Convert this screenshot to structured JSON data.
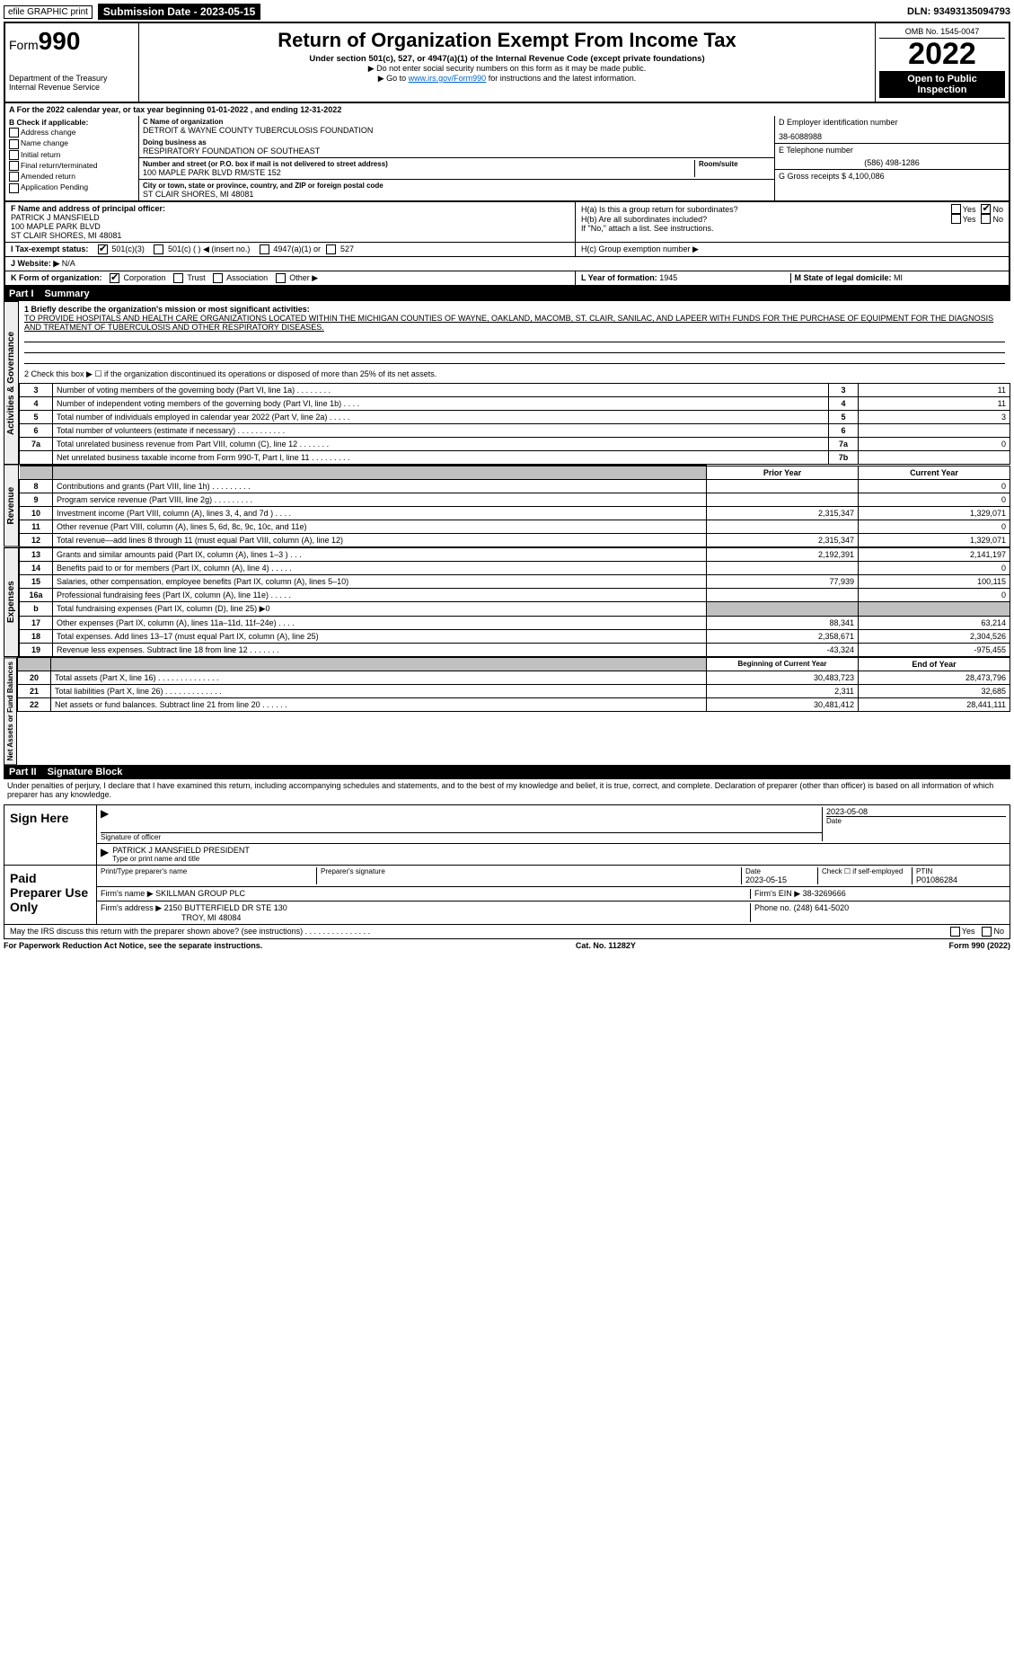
{
  "topbar": {
    "efile_label": "efile GRAPHIC print",
    "submission_label": "Submission Date - 2023-05-15",
    "dln": "DLN: 93493135094793"
  },
  "header": {
    "form_word": "Form",
    "form_num": "990",
    "dept": "Department of the Treasury",
    "irs": "Internal Revenue Service",
    "title": "Return of Organization Exempt From Income Tax",
    "subtitle": "Under section 501(c), 527, or 4947(a)(1) of the Internal Revenue Code (except private foundations)",
    "note1": "▶ Do not enter social security numbers on this form as it may be made public.",
    "note2_pre": "▶ Go to ",
    "note2_link": "www.irs.gov/Form990",
    "note2_post": " for instructions and the latest information.",
    "omb": "OMB No. 1545-0047",
    "year": "2022",
    "open_pub": "Open to Public Inspection"
  },
  "line_a": "A For the 2022 calendar year, or tax year beginning 01-01-2022    , and ending 12-31-2022",
  "col_b": {
    "hdr": "B Check if applicable:",
    "addr": "Address change",
    "name": "Name change",
    "init": "Initial return",
    "final": "Final return/terminated",
    "amend": "Amended return",
    "app": "Application Pending"
  },
  "col_c": {
    "name_lab": "C Name of organization",
    "name": "DETROIT & WAYNE COUNTY TUBERCULOSIS FOUNDATION",
    "dba_lab": "Doing business as",
    "dba": "RESPIRATORY FOUNDATION OF SOUTHEAST",
    "addr_lab": "Number and street (or P.O. box if mail is not delivered to street address)",
    "room_lab": "Room/suite",
    "addr": "100 MAPLE PARK BLVD RM/STE 152",
    "city_lab": "City or town, state or province, country, and ZIP or foreign postal code",
    "city": "ST CLAIR SHORES, MI  48081"
  },
  "col_de": {
    "d_lab": "D Employer identification number",
    "d_val": "38-6088988",
    "e_lab": "E Telephone number",
    "e_val": "(586) 498-1286",
    "g_lab": "G Gross receipts $",
    "g_val": "4,100,086"
  },
  "f": {
    "lab": "F Name and address of principal officer:",
    "name": "PATRICK J MANSFIELD",
    "addr1": "100 MAPLE PARK BLVD",
    "addr2": "ST CLAIR SHORES, MI  48081"
  },
  "h": {
    "a": "H(a)  Is this a group return for subordinates?",
    "b": "H(b)  Are all subordinates included?",
    "b_note": "If \"No,\" attach a list. See instructions.",
    "c": "H(c)  Group exemption number ▶",
    "yes": "Yes",
    "no": "No"
  },
  "i": {
    "lab": "I Tax-exempt status:",
    "o1": "501(c)(3)",
    "o2": "501(c) (   ) ◀ (insert no.)",
    "o3": "4947(a)(1) or",
    "o4": "527"
  },
  "j": {
    "lab": "J Website: ▶",
    "val": "N/A"
  },
  "k": {
    "lab": "K Form of organization:",
    "corp": "Corporation",
    "trust": "Trust",
    "assoc": "Association",
    "other": "Other ▶"
  },
  "l": {
    "lab": "L Year of formation:",
    "val": "1945"
  },
  "m": {
    "lab": "M State of legal domicile:",
    "val": "MI"
  },
  "parts": {
    "p1": "Part I",
    "p1t": "Summary",
    "p2": "Part II",
    "p2t": "Signature Block"
  },
  "vtabs": {
    "ag": "Activities & Governance",
    "rev": "Revenue",
    "exp": "Expenses",
    "nab": "Net Assets or Fund Balances"
  },
  "p1": {
    "l1": "1 Briefly describe the organization's mission or most significant activities:",
    "l1_text": "TO PROVIDE HOSPITALS AND HEALTH CARE ORGANIZATIONS LOCATED WITHIN THE MICHIGAN COUNTIES OF WAYNE, OAKLAND, MACOMB, ST. CLAIR, SANILAC, AND LAPEER WITH FUNDS FOR THE PURCHASE OF EQUIPMENT FOR THE DIAGNOSIS AND TREATMENT OF TUBERCULOSIS AND OTHER RESPIRATORY DISEASES.",
    "l2": "2 Check this box ▶ ☐ if the organization discontinued its operations or disposed of more than 25% of its net assets.",
    "rows": [
      {
        "n": "3",
        "t": "Number of voting members of the governing body (Part VI, line 1a)  .    .    .    .    .    .    .    .",
        "b": "3",
        "v": "11"
      },
      {
        "n": "4",
        "t": "Number of independent voting members of the governing body (Part VI, line 1b)   .    .    .    .",
        "b": "4",
        "v": "11"
      },
      {
        "n": "5",
        "t": "Total number of individuals employed in calendar year 2022 (Part V, line 2a)   .    .    .    .    .",
        "b": "5",
        "v": "3"
      },
      {
        "n": "6",
        "t": "Total number of volunteers (estimate if necessary)    .    .    .    .    .    .    .    .    .    .    .",
        "b": "6",
        "v": ""
      },
      {
        "n": "7a",
        "t": "Total unrelated business revenue from Part VIII, column (C), line 12   .    .    .    .    .    .    .",
        "b": "7a",
        "v": "0"
      },
      {
        "n": "",
        "t": "Net unrelated business taxable income from Form 990-T, Part I, line 11   .    .    .    .    .    .    .    .    .",
        "b": "7b",
        "v": ""
      }
    ],
    "hdr_prior": "Prior Year",
    "hdr_curr": "Current Year",
    "rev_rows": [
      {
        "n": "8",
        "t": "Contributions and grants (Part VIII, line 1h)   .    .    .    .    .    .    .    .    .",
        "p": "",
        "c": "0"
      },
      {
        "n": "9",
        "t": "Program service revenue (Part VIII, line 2g)   .    .    .    .    .    .    .    .    .",
        "p": "",
        "c": "0"
      },
      {
        "n": "10",
        "t": "Investment income (Part VIII, column (A), lines 3, 4, and 7d )   .    .    .    .",
        "p": "2,315,347",
        "c": "1,329,071"
      },
      {
        "n": "11",
        "t": "Other revenue (Part VIII, column (A), lines 5, 6d, 8c, 9c, 10c, and 11e)",
        "p": "",
        "c": "0"
      },
      {
        "n": "12",
        "t": "Total revenue—add lines 8 through 11 (must equal Part VIII, column (A), line 12)",
        "p": "2,315,347",
        "c": "1,329,071"
      }
    ],
    "exp_rows": [
      {
        "n": "13",
        "t": "Grants and similar amounts paid (Part IX, column (A), lines 1–3 )   .    .    .",
        "p": "2,192,391",
        "c": "2,141,197"
      },
      {
        "n": "14",
        "t": "Benefits paid to or for members (Part IX, column (A), line 4)   .    .    .    .    .",
        "p": "",
        "c": "0"
      },
      {
        "n": "15",
        "t": "Salaries, other compensation, employee benefits (Part IX, column (A), lines 5–10)",
        "p": "77,939",
        "c": "100,115"
      },
      {
        "n": "16a",
        "t": "Professional fundraising fees (Part IX, column (A), line 11e)   .    .    .    .    .",
        "p": "",
        "c": "0"
      },
      {
        "n": "b",
        "t": "Total fundraising expenses (Part IX, column (D), line 25) ▶0",
        "p": "__grey__",
        "c": "__grey__"
      },
      {
        "n": "17",
        "t": "Other expenses (Part IX, column (A), lines 11a–11d, 11f–24e)   .    .    .    .",
        "p": "88,341",
        "c": "63,214"
      },
      {
        "n": "18",
        "t": "Total expenses. Add lines 13–17 (must equal Part IX, column (A), line 25)",
        "p": "2,358,671",
        "c": "2,304,526"
      },
      {
        "n": "19",
        "t": "Revenue less expenses. Subtract line 18 from line 12   .    .    .    .    .    .    .",
        "p": "-43,324",
        "c": "-975,455"
      }
    ],
    "hdr_beg": "Beginning of Current Year",
    "hdr_end": "End of Year",
    "nab_rows": [
      {
        "n": "20",
        "t": "Total assets (Part X, line 16)   .    .    .    .    .    .    .    .    .    .    .    .    .    .",
        "p": "30,483,723",
        "c": "28,473,796"
      },
      {
        "n": "21",
        "t": "Total liabilities (Part X, line 26)   .    .    .    .    .    .    .    .    .    .    .    .    .",
        "p": "2,311",
        "c": "32,685"
      },
      {
        "n": "22",
        "t": "Net assets or fund balances. Subtract line 21 from line 20   .    .    .    .    .    .",
        "p": "30,481,412",
        "c": "28,441,111"
      }
    ]
  },
  "p2": {
    "decl": "Under penalties of perjury, I declare that I have examined this return, including accompanying schedules and statements, and to the best of my knowledge and belief, it is true, correct, and complete. Declaration of preparer (other than officer) is based on all information of which preparer has any knowledge.",
    "sign_here": "Sign Here",
    "sig_officer": "Signature of officer",
    "date_lab": "Date",
    "date_val": "2023-05-08",
    "name_title": "PATRICK J MANSFIELD PRESIDENT",
    "type_or_print": "Type or print name and title",
    "paid": "Paid Preparer Use Only",
    "prep_name_lab": "Print/Type preparer's name",
    "prep_sig_lab": "Preparer's signature",
    "prep_date_lab": "Date",
    "prep_date": "2023-05-15",
    "check_self": "Check ☐ if self-employed",
    "ptin_lab": "PTIN",
    "ptin": "P01086284",
    "firm_name_lab": "Firm's name    ▶",
    "firm_name": "SKILLMAN GROUP PLC",
    "firm_ein_lab": "Firm's EIN ▶",
    "firm_ein": "38-3269666",
    "firm_addr_lab": "Firm's address ▶",
    "firm_addr1": "2150 BUTTERFIELD DR STE 130",
    "firm_addr2": "TROY, MI  48084",
    "phone_lab": "Phone no.",
    "phone": "(248) 641-5020",
    "discuss": "May the IRS discuss this return with the preparer shown above? (see instructions)   .    .    .    .    .    .    .    .    .    .    .    .    .    .    ."
  },
  "footer": {
    "pra": "For Paperwork Reduction Act Notice, see the separate instructions.",
    "cat": "Cat. No. 11282Y",
    "form": "Form 990 (2022)"
  }
}
